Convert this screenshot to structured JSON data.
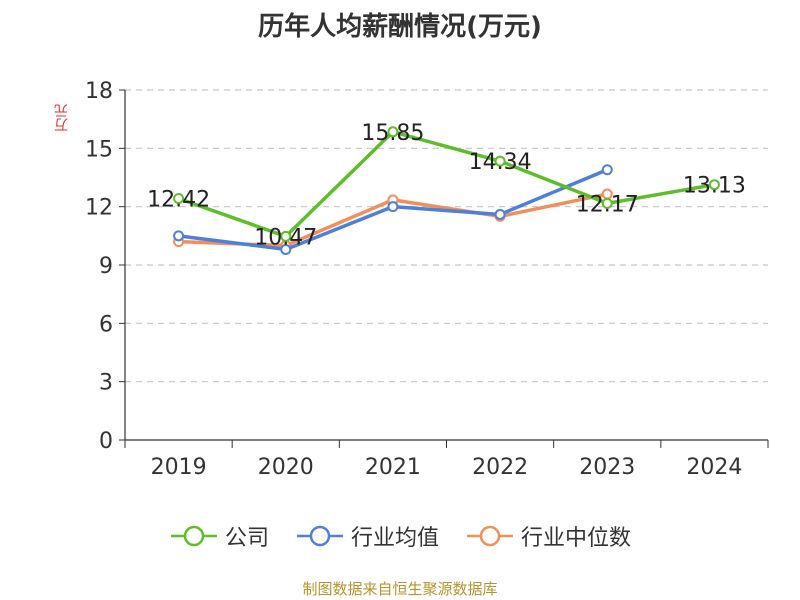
{
  "chart_data": {
    "type": "line",
    "title": "历年人均薪酬情况(万元)",
    "ylabel": "万元",
    "xlabel": "",
    "categories": [
      "2019",
      "2020",
      "2021",
      "2022",
      "2023",
      "2024"
    ],
    "ylim": [
      0,
      18
    ],
    "yticks": [
      0,
      3,
      6,
      9,
      12,
      15,
      18
    ],
    "grid": true,
    "legend_position": "bottom",
    "series": [
      {
        "name": "公司",
        "color": "#5cbf2a",
        "values": [
          12.42,
          10.47,
          15.85,
          14.34,
          12.17,
          13.13
        ],
        "labels": [
          "12.42",
          "10.47",
          "15.85",
          "14.34",
          "12.17",
          "13.13"
        ]
      },
      {
        "name": "行业均值",
        "color": "#4e7fd9",
        "values": [
          10.5,
          9.8,
          12.0,
          11.6,
          13.9,
          null
        ]
      },
      {
        "name": "行业中位数",
        "color": "#f28e5c",
        "values": [
          10.2,
          10.0,
          12.35,
          11.5,
          12.65,
          null
        ]
      }
    ]
  },
  "source": "制图数据来自恒生聚源数据库"
}
